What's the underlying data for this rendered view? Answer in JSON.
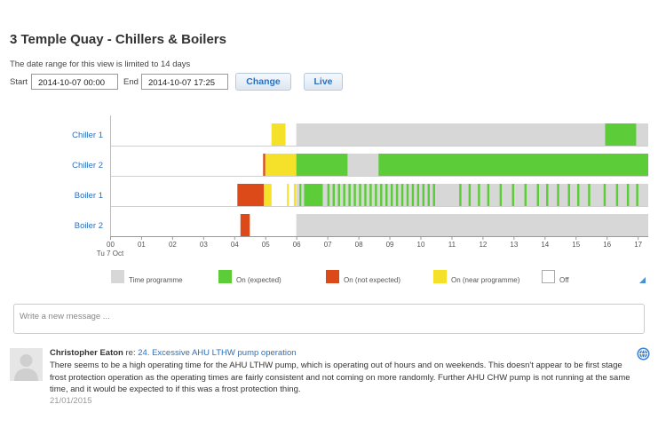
{
  "page": {
    "title": "3 Temple Quay - Chillers & Boilers",
    "range_note": "The date range for this view is limited to 14 days"
  },
  "controls": {
    "start_label": "Start",
    "start_value": "2014-10-07 00:00",
    "end_label": "End",
    "end_value": "2014-10-07 17:25",
    "change_label": "Change",
    "live_label": "Live"
  },
  "colors": {
    "time_programme": "#d7d7d7",
    "on_expected": "#5ccc38",
    "on_not_expected": "#dc4a1a",
    "on_near_programme": "#f6e12a",
    "off": "#ffffff",
    "row_label": "#2c6fbb"
  },
  "chart_data": {
    "type": "timeline",
    "x_ticks": [
      "00",
      "01",
      "02",
      "03",
      "04",
      "05",
      "06",
      "07",
      "08",
      "09",
      "10",
      "11",
      "12",
      "13",
      "14",
      "15",
      "16",
      "17"
    ],
    "x_sublabel": "Tu 7 Oct",
    "x_range_hours": [
      0,
      17.45
    ],
    "rows": [
      {
        "name": "Chiller 1",
        "time_programme": [
          [
            6,
            17.45
          ]
        ],
        "segments": [
          {
            "state": "on_near_programme",
            "start": 5.2,
            "end": 5.65
          },
          {
            "state": "on_expected",
            "start": 15.95,
            "end": 16.95
          }
        ]
      },
      {
        "name": "Chiller 2",
        "time_programme": [
          [
            6,
            17.45
          ]
        ],
        "segments": [
          {
            "state": "on_not_expected",
            "start": 4.93,
            "end": 5.0
          },
          {
            "state": "on_near_programme",
            "start": 5.0,
            "end": 6.0
          },
          {
            "state": "on_expected",
            "start": 6.0,
            "end": 7.65
          },
          {
            "state": "on_expected",
            "start": 8.65,
            "end": 17.45
          }
        ]
      },
      {
        "name": "Boiler 1",
        "time_programme": [
          [
            6,
            17.45
          ]
        ],
        "segments": [
          {
            "state": "on_not_expected",
            "start": 4.1,
            "end": 4.95
          },
          {
            "state": "on_near_programme",
            "start": 4.95,
            "end": 5.2
          },
          {
            "state": "on_near_programme",
            "start": 5.7,
            "end": 5.76
          },
          {
            "state": "on_near_programme",
            "start": 5.92,
            "end": 5.99
          },
          {
            "state": "on_expected",
            "start": 6.1,
            "end": 6.16
          },
          {
            "state": "on_expected",
            "start": 6.25,
            "end": 6.85
          },
          {
            "state": "on_expected",
            "start": 7.0,
            "end": 7.07
          },
          {
            "state": "on_expected",
            "start": 7.17,
            "end": 7.24
          },
          {
            "state": "on_expected",
            "start": 7.34,
            "end": 7.41
          },
          {
            "state": "on_expected",
            "start": 7.51,
            "end": 7.58
          },
          {
            "state": "on_expected",
            "start": 7.68,
            "end": 7.75
          },
          {
            "state": "on_expected",
            "start": 7.85,
            "end": 7.92
          },
          {
            "state": "on_expected",
            "start": 8.02,
            "end": 8.09
          },
          {
            "state": "on_expected",
            "start": 8.19,
            "end": 8.26
          },
          {
            "state": "on_expected",
            "start": 8.36,
            "end": 8.43
          },
          {
            "state": "on_expected",
            "start": 8.53,
            "end": 8.6
          },
          {
            "state": "on_expected",
            "start": 8.7,
            "end": 8.77
          },
          {
            "state": "on_expected",
            "start": 8.87,
            "end": 8.94
          },
          {
            "state": "on_expected",
            "start": 9.04,
            "end": 9.11
          },
          {
            "state": "on_expected",
            "start": 9.21,
            "end": 9.28
          },
          {
            "state": "on_expected",
            "start": 9.38,
            "end": 9.45
          },
          {
            "state": "on_expected",
            "start": 9.55,
            "end": 9.62
          },
          {
            "state": "on_expected",
            "start": 9.72,
            "end": 9.79
          },
          {
            "state": "on_expected",
            "start": 9.89,
            "end": 9.96
          },
          {
            "state": "on_expected",
            "start": 10.06,
            "end": 10.13
          },
          {
            "state": "on_expected",
            "start": 10.23,
            "end": 10.3
          },
          {
            "state": "on_expected",
            "start": 10.4,
            "end": 10.47
          },
          {
            "state": "on_expected",
            "start": 11.25,
            "end": 11.32
          },
          {
            "state": "on_expected",
            "start": 11.55,
            "end": 11.62
          },
          {
            "state": "on_expected",
            "start": 11.85,
            "end": 11.92
          },
          {
            "state": "on_expected",
            "start": 12.15,
            "end": 12.22
          },
          {
            "state": "on_expected",
            "start": 12.55,
            "end": 12.62
          },
          {
            "state": "on_expected",
            "start": 12.95,
            "end": 13.02
          },
          {
            "state": "on_expected",
            "start": 13.35,
            "end": 13.42
          },
          {
            "state": "on_expected",
            "start": 13.75,
            "end": 13.82
          },
          {
            "state": "on_expected",
            "start": 14.05,
            "end": 14.12
          },
          {
            "state": "on_expected",
            "start": 14.4,
            "end": 14.47
          },
          {
            "state": "on_expected",
            "start": 14.75,
            "end": 14.82
          },
          {
            "state": "on_expected",
            "start": 15.05,
            "end": 15.12
          },
          {
            "state": "on_expected",
            "start": 15.4,
            "end": 15.47
          },
          {
            "state": "on_expected",
            "start": 15.9,
            "end": 15.97
          },
          {
            "state": "on_expected",
            "start": 16.3,
            "end": 16.37
          },
          {
            "state": "on_expected",
            "start": 16.65,
            "end": 16.72
          },
          {
            "state": "on_expected",
            "start": 16.95,
            "end": 17.02
          }
        ]
      },
      {
        "name": "Boiler 2",
        "time_programme": [
          [
            6,
            17.45
          ]
        ],
        "segments": [
          {
            "state": "on_not_expected",
            "start": 4.2,
            "end": 4.5
          }
        ]
      }
    ],
    "legend": [
      {
        "key": "time_programme",
        "label": "Time programme"
      },
      {
        "key": "on_expected",
        "label": "On (expected)"
      },
      {
        "key": "on_not_expected",
        "label": "On (not expected)"
      },
      {
        "key": "on_near_programme",
        "label": "On (near programme)"
      },
      {
        "key": "off",
        "label": "Off"
      }
    ]
  },
  "message": {
    "placeholder": "Write a new message ..."
  },
  "comment": {
    "author": "Christopher Eaton",
    "re_label": "re:",
    "thread_link": "24. Excessive AHU LTHW pump operation",
    "body": "There seems to be a high operating time for the AHU LTHW pump, which is operating out of hours and on weekends. This doesn't appear to be first stage frost protection operation as the operating times are fairly consistent and not coming on more randomly. Further AHU CHW pump is not running at the same time, and it would be expected to if this was a frost protection thing.",
    "date": "21/01/2015",
    "icons": {
      "avatar": "user-avatar-icon",
      "globe": "globe-icon"
    }
  }
}
